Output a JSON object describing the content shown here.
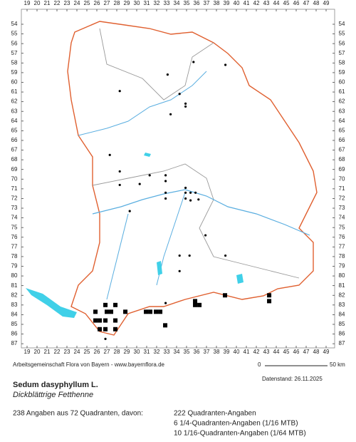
{
  "map": {
    "xticks": [
      19,
      20,
      21,
      22,
      23,
      24,
      25,
      26,
      27,
      28,
      29,
      30,
      31,
      32,
      33,
      34,
      35,
      36,
      37,
      38,
      39,
      40,
      41,
      42,
      43,
      44,
      45,
      46,
      47,
      48,
      49
    ],
    "yticks": [
      54,
      55,
      56,
      57,
      58,
      59,
      60,
      61,
      62,
      63,
      64,
      65,
      66,
      67,
      68,
      69,
      70,
      71,
      72,
      73,
      74,
      75,
      76,
      77,
      78,
      79,
      80,
      81,
      82,
      83,
      84,
      85,
      86,
      87
    ],
    "quadrants": [
      [
        26.86,
        83
      ],
      [
        27.86,
        83
      ],
      [
        35.86,
        83
      ],
      [
        36.29,
        83
      ],
      [
        35.86,
        82.6
      ],
      [
        38.86,
        82
      ],
      [
        43.29,
        82
      ],
      [
        43.29,
        82.6
      ],
      [
        25.86,
        83.7
      ],
      [
        27,
        83.7
      ],
      [
        27.43,
        83.7
      ],
      [
        28.86,
        83.7
      ],
      [
        30.93,
        83.7
      ],
      [
        31.36,
        83.7
      ],
      [
        31.93,
        83.7
      ],
      [
        32.36,
        83.7
      ],
      [
        25.86,
        84.6
      ],
      [
        26.29,
        84.6
      ],
      [
        26.86,
        84.6
      ],
      [
        27.86,
        84.6
      ],
      [
        32.86,
        85.1
      ],
      [
        26.29,
        85.5
      ],
      [
        26.86,
        85.5
      ],
      [
        27.86,
        85.5
      ]
    ],
    "dots": [
      [
        35.7,
        57.9
      ],
      [
        38.9,
        58.2
      ],
      [
        33.1,
        59.2
      ],
      [
        28.3,
        60.9
      ],
      [
        34.3,
        61.2
      ],
      [
        34.9,
        62.2
      ],
      [
        34.9,
        62.5
      ],
      [
        33.4,
        63.3
      ],
      [
        27.3,
        67.5
      ],
      [
        28.3,
        69.2
      ],
      [
        28.3,
        70.6
      ],
      [
        32.9,
        69.6
      ],
      [
        31.3,
        69.6
      ],
      [
        30.3,
        70.5
      ],
      [
        32.9,
        70.2
      ],
      [
        34.9,
        70.9
      ],
      [
        32.9,
        71.4
      ],
      [
        34.9,
        71.4
      ],
      [
        35.4,
        71.4
      ],
      [
        35.9,
        71.4
      ],
      [
        34.9,
        72
      ],
      [
        32.9,
        72
      ],
      [
        35.4,
        72.2
      ],
      [
        36.2,
        72.1
      ],
      [
        29.3,
        73.3
      ],
      [
        36.9,
        75.8
      ],
      [
        35.3,
        77.9
      ],
      [
        34.3,
        77.9
      ],
      [
        38.9,
        77.9
      ],
      [
        34.3,
        79.5
      ],
      [
        32.9,
        82.8
      ],
      [
        26.86,
        86.5
      ]
    ]
  },
  "footer": {
    "credit": "Arbeitsgemeinschaft Flora von Bayern - www.bayernflora.de",
    "scale_start": "0",
    "scale_end": "50 km",
    "date": "Datenstand: 26.11.2025",
    "species": "Sedum dasyphyllum L.",
    "common_name": "Dickblättrige Fetthenne",
    "summary": "238 Angaben aus 72 Quadranten, davon:",
    "counts": [
      "222 Quadranten-Angaben",
      "6 1/4-Quadranten-Angaben (1/16 MTB)",
      "10 1/16-Quadranten-Angaben (1/64 MTB)"
    ]
  }
}
